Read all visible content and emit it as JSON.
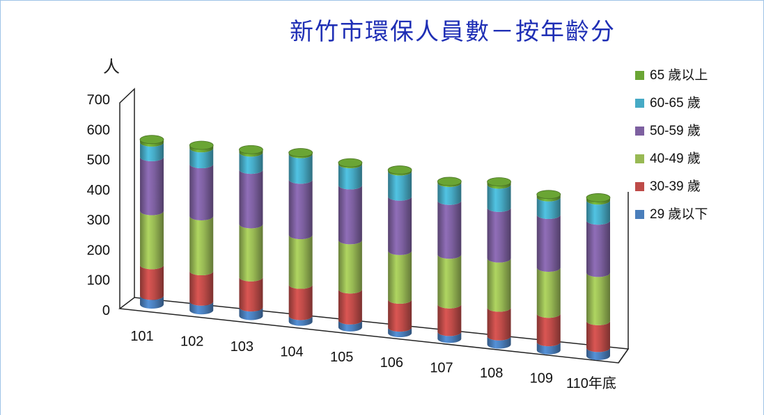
{
  "chart_data": {
    "type": "bar",
    "stacked": true,
    "style": "3d-cylinder",
    "title": "新竹市環保人員數－按年齡分",
    "ylabel": "人",
    "ylim": [
      0,
      700
    ],
    "yticks": [
      "0",
      "100",
      "200",
      "300",
      "400",
      "500",
      "600",
      "700"
    ],
    "categories": [
      "101",
      "102",
      "103",
      "104",
      "105",
      "106",
      "107",
      "108",
      "109",
      "110年底"
    ],
    "series": [
      {
        "name": "29 歲以下",
        "color": "#4a7ebb",
        "values": [
          30,
          30,
          30,
          20,
          25,
          20,
          25,
          30,
          30,
          30
        ]
      },
      {
        "name": "30-39 歲",
        "color": "#be4b48",
        "values": [
          105,
          105,
          105,
          110,
          110,
          100,
          100,
          105,
          105,
          100
        ]
      },
      {
        "name": "40-49 歲",
        "color": "#98b954",
        "values": [
          185,
          190,
          185,
          175,
          175,
          175,
          180,
          180,
          170,
          180
        ]
      },
      {
        "name": "50-59 歲",
        "color": "#7d60a0",
        "values": [
          185,
          180,
          190,
          195,
          195,
          195,
          195,
          185,
          195,
          195
        ]
      },
      {
        "name": "60-65 歲",
        "color": "#46aac5",
        "values": [
          50,
          55,
          60,
          90,
          75,
          90,
          65,
          85,
          65,
          75
        ]
      },
      {
        "name": "65 歲以上",
        "color": "#6aa534",
        "values": [
          10,
          10,
          10,
          5,
          5,
          5,
          5,
          10,
          10,
          10
        ]
      }
    ],
    "legend_position": "right"
  }
}
